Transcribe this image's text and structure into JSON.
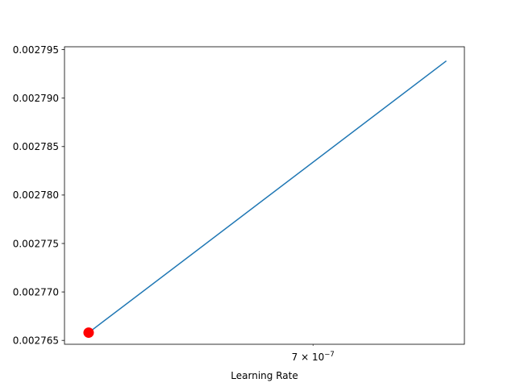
{
  "chart_data": {
    "type": "line",
    "title": "",
    "xlabel": "Learning Rate",
    "ylabel": "",
    "x_scale": "log",
    "xlim": [
      5.09e-07,
      8.5e-07
    ],
    "ylim": [
      0.0027646,
      0.0027953
    ],
    "x_ticks": [
      {
        "value": 7e-07,
        "label": "7 × 10⁻⁷",
        "base": "7 × 10",
        "exp": "−7"
      }
    ],
    "y_ticks": [
      {
        "value": 0.002765,
        "label": "0.002765"
      },
      {
        "value": 0.00277,
        "label": "0.002770"
      },
      {
        "value": 0.002775,
        "label": "0.002775"
      },
      {
        "value": 0.00278,
        "label": "0.002780"
      },
      {
        "value": 0.002785,
        "label": "0.002785"
      },
      {
        "value": 0.00279,
        "label": "0.002790"
      },
      {
        "value": 0.002795,
        "label": "0.002795"
      }
    ],
    "series": [
      {
        "color": "#1f77b4",
        "x": [
          5.25e-07,
          8.3e-07
        ],
        "y": [
          0.0027658,
          0.0027938
        ]
      }
    ],
    "highlight_point": {
      "x": 5.25e-07,
      "y": 0.0027658,
      "color": "#ff0000"
    },
    "grid": false,
    "legend": "none"
  }
}
